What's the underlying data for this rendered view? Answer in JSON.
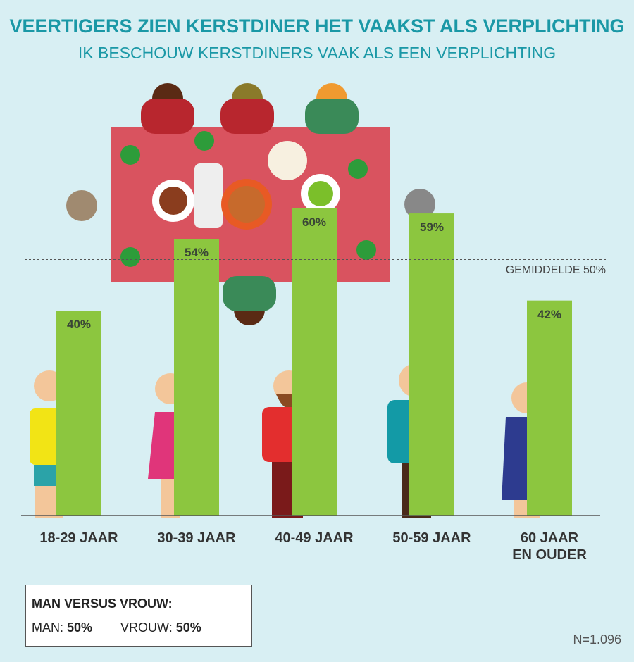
{
  "chart_data": {
    "type": "bar",
    "title": "VEERTIGERS ZIEN KERSTDINER HET VAAKST ALS VERPLICHTING",
    "subtitle": "IK BESCHOUW KERSTDINERS VAAK ALS EEN VERPLICHTING",
    "categories": [
      "18-29 JAAR",
      "30-39 JAAR",
      "40-49 JAAR",
      "50-59 JAAR",
      "60 JAAR\nEN OUDER"
    ],
    "values": [
      40,
      54,
      60,
      59,
      42
    ],
    "value_labels": [
      "40%",
      "54%",
      "60%",
      "59%",
      "42%"
    ],
    "color": "#8cc63f",
    "ylim": [
      0,
      100
    ],
    "average": {
      "value": 50,
      "label": "GEMIDDELDE 50%"
    }
  },
  "gender_box": {
    "title": "MAN VERSUS VROUW:",
    "man_label": "MAN:",
    "man_value": "50%",
    "vrouw_label": "VROUW:",
    "vrouw_value": "50%"
  },
  "sample_size": "N=1.096"
}
